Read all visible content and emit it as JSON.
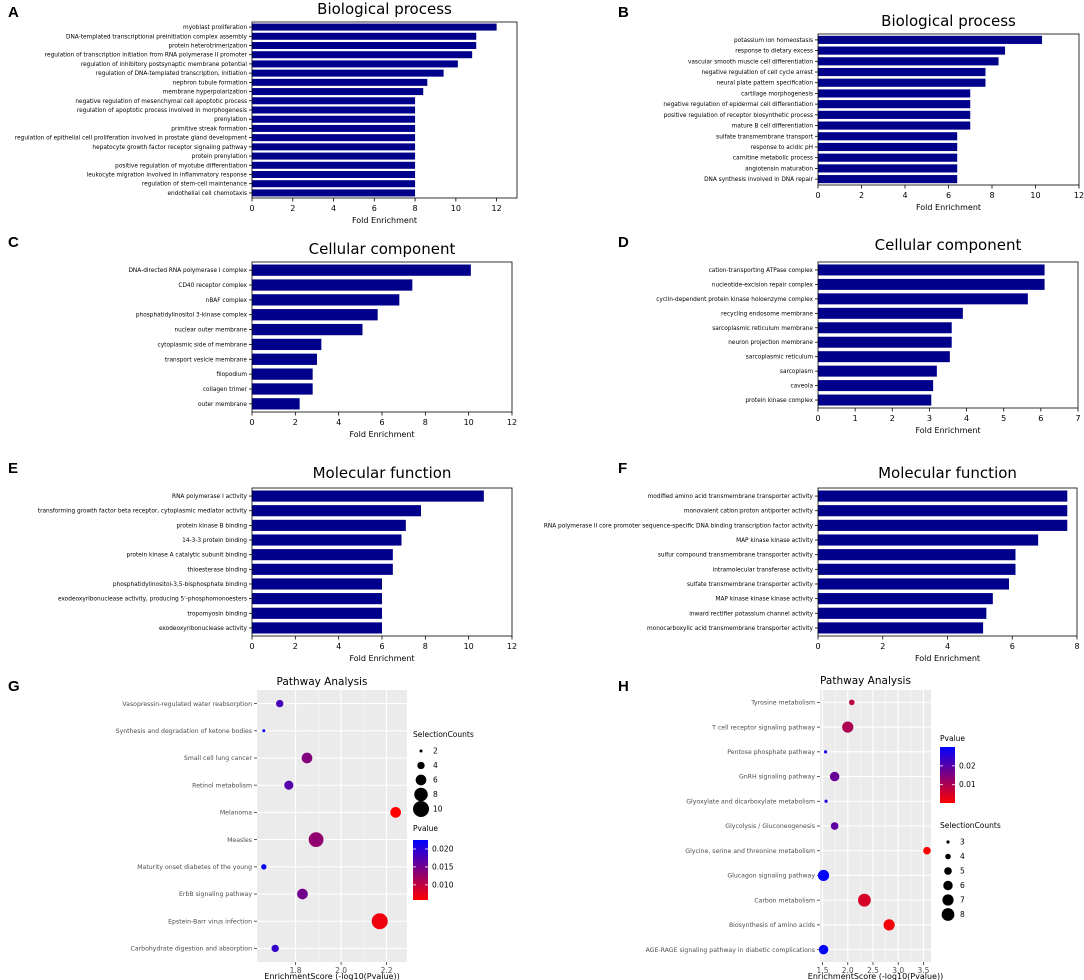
{
  "chart_data": [
    {
      "id": "A",
      "letter": "A",
      "type": "bar",
      "orientation": "horizontal",
      "title": "Biological process",
      "xlabel": "Fold Enrichment",
      "ylabel": "",
      "xlim": [
        0,
        13
      ],
      "xticks": [
        0,
        2,
        4,
        6,
        8,
        10,
        12
      ],
      "bar_color": "#00008b",
      "categories": [
        "myoblast proliferation",
        "DNA-templated transcriptional preinitiation complex assembly",
        "protein heterotrimerization",
        "regulation of transcription initiation from RNA polymerase II promoter",
        "regulation of inhibitory postsynaptic membrane potential",
        "regulation of DNA-templated transcription, initiation",
        "nephron tubule formation",
        "membrane hyperpolarization",
        "negative regulation of mesenchymal cell apoptotic process",
        "regulation of apoptotic process involved in morphogenesis",
        "prenylation",
        "primitive streak formation",
        "regulation of epithelial cell proliferation involved in prostate gland development",
        "hepatocyte growth factor receptor signaling pathway",
        "protein prenylation",
        "positive regulation of myotube differentiation",
        "leukocyte migration involved in inflammatory response",
        "regulation of stem-cell maintenance",
        "endothelial cell chemotaxis"
      ],
      "values": [
        12.0,
        11.0,
        11.0,
        10.8,
        10.1,
        9.4,
        8.6,
        8.4,
        8.0,
        8.0,
        8.0,
        8.0,
        8.0,
        8.0,
        8.0,
        8.0,
        8.0,
        8.0,
        8.0
      ]
    },
    {
      "id": "B",
      "letter": "B",
      "type": "bar",
      "orientation": "horizontal",
      "title": "Biological process",
      "xlabel": "Fold Enrichment",
      "ylabel": "",
      "xlim": [
        0,
        12
      ],
      "xticks": [
        0,
        2,
        4,
        6,
        8,
        10,
        12
      ],
      "bar_color": "#00008b",
      "categories": [
        "potassium ion homeostasis",
        "response to dietary excess",
        "vascular smooth muscle cell differentiation",
        "negative regulation of cell cycle arrest",
        "neural plate pattern specification",
        "cartilage morphogenesis",
        "negative regulation of epidermal cell differentiation",
        "positive regulation of receptor biosynthetic process",
        "mature B cell differentiation",
        "sulfate transmembrane transport",
        "response to acidic pH",
        "carnitine metabolic process",
        "angiotensin maturation",
        "DNA synthesis involved in DNA repair"
      ],
      "values": [
        10.3,
        8.6,
        8.3,
        7.7,
        7.7,
        7.0,
        7.0,
        7.0,
        7.0,
        6.4,
        6.4,
        6.4,
        6.4,
        6.4
      ]
    },
    {
      "id": "C",
      "letter": "C",
      "type": "bar",
      "orientation": "horizontal",
      "title": "Cellular component",
      "xlabel": "Fold Enrichment",
      "ylabel": "",
      "xlim": [
        0,
        12
      ],
      "xticks": [
        0,
        2,
        4,
        6,
        8,
        10,
        12
      ],
      "bar_color": "#00008b",
      "categories": [
        "DNA-directed RNA polymerase I complex",
        "CD40 receptor complex",
        "nBAF complex",
        "phosphatidylinositol 3-kinase complex",
        "nuclear outer membrane",
        "cytoplasmic side of membrane",
        "transport vesicle membrane",
        "filopodium",
        "collagen trimer",
        "outer membrane"
      ],
      "values": [
        10.1,
        7.4,
        6.8,
        5.8,
        5.1,
        3.2,
        3.0,
        2.8,
        2.8,
        2.2
      ]
    },
    {
      "id": "D",
      "letter": "D",
      "type": "bar",
      "orientation": "horizontal",
      "title": "Cellular component",
      "xlabel": "Fold Enrichment",
      "ylabel": "",
      "xlim": [
        0,
        7
      ],
      "xticks": [
        0,
        1,
        2,
        3,
        4,
        5,
        6,
        7
      ],
      "bar_color": "#00008b",
      "categories": [
        "cation-transporting ATPase complex",
        "nucleotide-excision repair complex",
        "cyclin-dependent protein kinase holoenzyme complex",
        "recycling endosome membrane",
        "sarcoplasmic reticulum membrane",
        "neuron projection membrane",
        "sarcoplasmic reticulum",
        "sarcoplasm",
        "caveola",
        "protein kinase complex"
      ],
      "values": [
        6.1,
        6.1,
        5.65,
        3.9,
        3.6,
        3.6,
        3.55,
        3.2,
        3.1,
        3.05
      ]
    },
    {
      "id": "E",
      "letter": "E",
      "type": "bar",
      "orientation": "horizontal",
      "title": "Molecular function",
      "xlabel": "Fold Enrichment",
      "ylabel": "",
      "xlim": [
        0,
        12
      ],
      "xticks": [
        0,
        2,
        4,
        6,
        8,
        10,
        12
      ],
      "bar_color": "#00008b",
      "categories": [
        "RNA polymerase I activity",
        "transforming growth factor beta receptor, cytoplasmic mediator activity",
        "protein kinase B binding",
        "14-3-3 protein binding",
        "protein kinase A catalytic subunit binding",
        "thioesterase binding",
        "phosphatidylinositol-3,5-bisphosphate binding",
        "exodeoxyribonuclease activity, producing 5'-phosphomonoesters",
        "tropomyosin binding",
        "exodeoxyribonuclease activity"
      ],
      "values": [
        10.7,
        7.8,
        7.1,
        6.9,
        6.5,
        6.5,
        6.0,
        6.0,
        6.0,
        6.0
      ]
    },
    {
      "id": "F",
      "letter": "F",
      "type": "bar",
      "orientation": "horizontal",
      "title": "Molecular function",
      "xlabel": "Fold Enrichment",
      "ylabel": "",
      "xlim": [
        0,
        8
      ],
      "xticks": [
        0,
        2,
        4,
        6,
        8
      ],
      "bar_color": "#00008b",
      "categories": [
        "modified amino acid transmembrane transporter activity",
        "monovalent cation:proton antiporter activity",
        "RNA polymerase II core promoter sequence-specific DNA binding transcription factor activity",
        "MAP kinase kinase activity",
        "sulfur compound transmembrane transporter activity",
        "intramolecular transferase activity",
        "sulfate transmembrane transporter activity",
        "MAP kinase kinase kinase activity",
        "inward rectifier potassium channel activity",
        "monocarboxylic acid transmembrane transporter activity"
      ],
      "values": [
        7.7,
        7.7,
        7.7,
        6.8,
        6.1,
        6.1,
        5.9,
        5.4,
        5.2,
        5.1
      ]
    },
    {
      "id": "G",
      "letter": "G",
      "type": "scatter",
      "title": "Pathway Analysis",
      "xlabel": "EnrichmentScore (-log10(Pvalue))",
      "ylabel": "",
      "xlim": [
        1.63,
        2.29
      ],
      "xticks": [
        1.8,
        2.0,
        2.2
      ],
      "xtick_labels": [
        "1.8",
        "2.0",
        "2.2"
      ],
      "categories": [
        "Vasopressin-regulated water reabsorption",
        "Synthesis and degradation of ketone bodies",
        "Small cell lung cancer",
        "Retinol metabolism",
        "Melanoma",
        "Measles",
        "Maturity onset diabetes of the young",
        "ErbB signaling pathway",
        "Epstein-Barr virus infection",
        "Carbohydrate digestion and absorption"
      ],
      "x": [
        1.73,
        1.66,
        1.85,
        1.77,
        2.24,
        1.89,
        1.66,
        1.83,
        2.17,
        1.71
      ],
      "counts": [
        4,
        2,
        6,
        5,
        6,
        9,
        3,
        6,
        10,
        4
      ],
      "pvalues": [
        0.018,
        0.022,
        0.014,
        0.017,
        0.0058,
        0.013,
        0.022,
        0.015,
        0.0068,
        0.019
      ],
      "size_legend": {
        "title": "SelectionCounts",
        "values": [
          2,
          4,
          6,
          8,
          10
        ]
      },
      "color_legend": {
        "title": "Pvalue",
        "ticks": [
          0.02,
          0.015,
          0.01
        ],
        "tick_labels": [
          "0.020",
          "0.015",
          "0.010"
        ],
        "range": [
          0.0058,
          0.0225
        ]
      },
      "colors": {
        "low": "#ff0000",
        "high": "#0000ff",
        "panel_bg": "#ebebeb",
        "grid": "#ffffff"
      }
    },
    {
      "id": "H",
      "letter": "H",
      "type": "scatter",
      "title": "Pathway Analysis",
      "xlabel": "EnrichmentScore (-log10(Pvalue))",
      "ylabel": "",
      "xlim": [
        1.45,
        3.65
      ],
      "xticks": [
        1.5,
        2.0,
        2.5,
        3.0,
        3.5
      ],
      "xtick_labels": [
        "1.5",
        "2.0",
        "2.5",
        "3.0",
        "3.5"
      ],
      "categories": [
        "Tyrosine metabolism",
        "T cell receptor signaling pathway",
        "Pentose phosphate pathway",
        "GnRH signaling pathway",
        "Glyoxylate and dicarboxylate metabolism",
        "Glycolysis / Gluconeogenesis",
        "Glycine, serine and threonine metabolism",
        "Glucagon signaling pathway",
        "Carbon metabolism",
        "Biosynthesis of amino acids",
        "AGE-RAGE signaling pathway in diabetic complications"
      ],
      "x": [
        2.08,
        2.0,
        1.56,
        1.74,
        1.57,
        1.74,
        3.57,
        1.52,
        2.33,
        2.82,
        1.52
      ],
      "counts": [
        4,
        7,
        3,
        6,
        3,
        5,
        5,
        7,
        8,
        7,
        6
      ],
      "pvalues": [
        0.008,
        0.01,
        0.028,
        0.018,
        0.027,
        0.019,
        0.0003,
        0.03,
        0.005,
        0.0015,
        0.03
      ],
      "size_legend": {
        "title": "SelectionCounts",
        "values": [
          3,
          4,
          5,
          6,
          7,
          8
        ]
      },
      "color_legend": {
        "title": "Pvalue",
        "ticks": [
          0.02,
          0.01
        ],
        "tick_labels": [
          "0.02",
          "0.01"
        ],
        "range": [
          0.0003,
          0.03
        ]
      },
      "colors": {
        "low": "#ff0000",
        "high": "#0000ff",
        "panel_bg": "#ebebeb",
        "grid": "#ffffff"
      }
    }
  ]
}
